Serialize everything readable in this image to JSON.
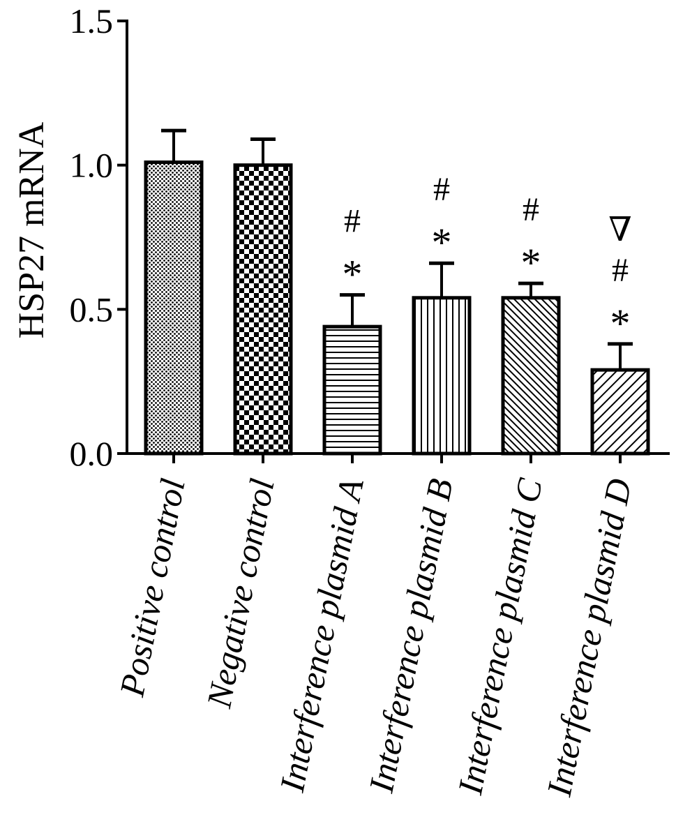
{
  "chart_data": {
    "type": "bar",
    "title": "",
    "xlabel": "",
    "ylabel": "HSP27 mRNA",
    "ylim": [
      0,
      1.5
    ],
    "yticks": [
      "0.0",
      "0.5",
      "1.0",
      "1.5"
    ],
    "yticks_values": [
      0,
      0.5,
      1.0,
      1.5
    ],
    "grid": false,
    "categories": [
      "Positive control",
      "Negative control",
      "Interference plasmid A",
      "Interference plasmid B",
      "Interference plasmid C",
      "Interference plasmid D"
    ],
    "values": [
      1.01,
      1.0,
      0.44,
      0.54,
      0.54,
      0.29
    ],
    "errors": [
      0.11,
      0.09,
      0.11,
      0.12,
      0.05,
      0.09
    ],
    "patterns": [
      "dense-dots",
      "checker",
      "horizontal-lines",
      "vertical-lines",
      "diagonal-dense",
      "diagonal-sparse"
    ],
    "annotations": [
      [],
      [],
      [
        "*",
        "#"
      ],
      [
        "*",
        "#"
      ],
      [
        "*",
        "#"
      ],
      [
        "*",
        "#",
        "∇"
      ]
    ],
    "colors": {
      "stroke": "#000000",
      "fill": "#ffffff"
    }
  }
}
